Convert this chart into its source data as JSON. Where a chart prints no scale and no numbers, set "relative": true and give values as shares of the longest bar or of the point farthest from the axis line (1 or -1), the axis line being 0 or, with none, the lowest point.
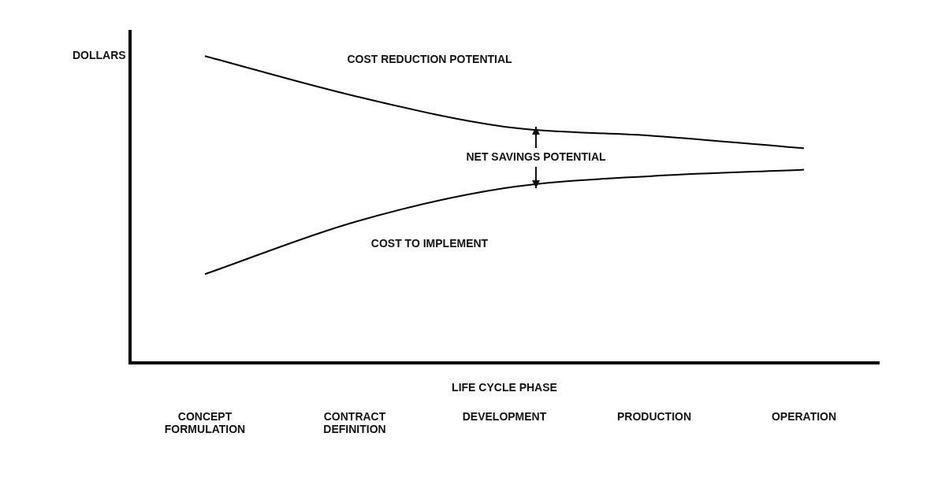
{
  "chart_data": {
    "type": "line",
    "relative": true,
    "ylabel": "DOLLARS",
    "xlabel": "LIFE CYCLE PHASE",
    "categories": [
      "CONCEPT FORMULATION",
      "CONTRACT DEFINITION",
      "DEVELOPMENT",
      "PRODUCTION",
      "OPERATION"
    ],
    "series": [
      {
        "name": "COST REDUCTION POTENTIAL",
        "color": "#000000",
        "values": [
          1,
          0.87,
          0.77,
          0.74,
          0.7
        ]
      },
      {
        "name": "COST TO IMPLEMENT",
        "color": "#000000",
        "values": [
          0.29,
          0.46,
          0.57,
          0.61,
          0.63
        ]
      }
    ],
    "annotations": [
      "NET SAVINGS POTENTIAL"
    ],
    "grid": false,
    "legend": false,
    "marker": "none",
    "line_style": "solid"
  }
}
